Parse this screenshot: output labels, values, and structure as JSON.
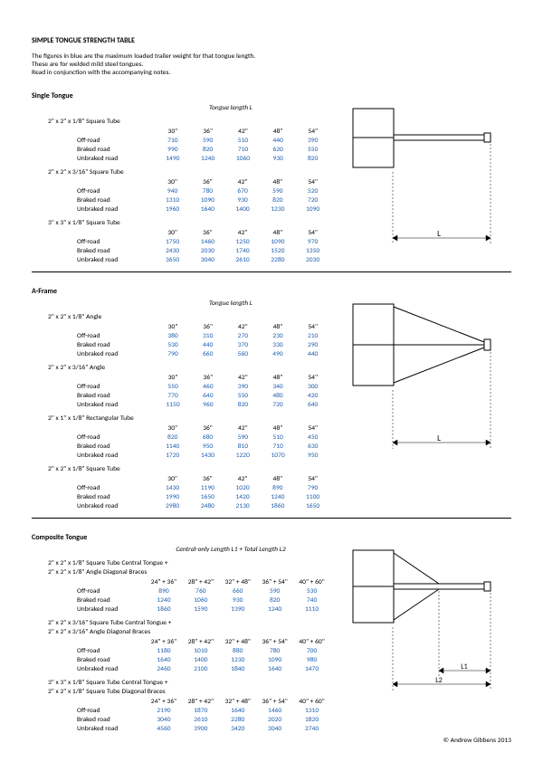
{
  "title": "SIMPLE TONGUE STRENGTH TABLE",
  "intro": [
    "The figures in blue are the maximum loaded trailer weight for that tongue length.",
    "These are for welded mild steel tongues.",
    "Read in conjunction with the accompanying notes."
  ],
  "sections": [
    {
      "name": "Single Tongue",
      "header": "Tongue length L",
      "cols": [
        "30\"",
        "36\"",
        "42\"",
        "48\"",
        "54\""
      ],
      "groups": [
        {
          "title": "2\" x 2\" x 1/8\" Square Tube",
          "rows": [
            {
              "label": "Off-road",
              "vals": [
                "710",
                "590",
                "510",
                "440",
                "390"
              ]
            },
            {
              "label": "Braked road",
              "vals": [
                "990",
                "820",
                "710",
                "620",
                "550"
              ]
            },
            {
              "label": "Unbraked road",
              "vals": [
                "1490",
                "1240",
                "1060",
                "930",
                "820"
              ]
            }
          ]
        },
        {
          "title": "2\" x 2\" x 3/16\" Square Tube",
          "rows": [
            {
              "label": "Off-road",
              "vals": [
                "940",
                "780",
                "670",
                "590",
                "520"
              ]
            },
            {
              "label": "Braked road",
              "vals": [
                "1310",
                "1090",
                "930",
                "820",
                "720"
              ]
            },
            {
              "label": "Unbraked road",
              "vals": [
                "1960",
                "1640",
                "1400",
                "1230",
                "1090"
              ]
            }
          ]
        },
        {
          "title": "3\" x 3\" x 1/8\" Square Tube",
          "rows": [
            {
              "label": "Off-road",
              "vals": [
                "1750",
                "1460",
                "1250",
                "1090",
                "970"
              ]
            },
            {
              "label": "Braked road",
              "vals": [
                "2430",
                "2030",
                "1740",
                "1520",
                "1350"
              ]
            },
            {
              "label": "Unbraked road",
              "vals": [
                "3650",
                "3040",
                "2610",
                "2280",
                "2030"
              ]
            }
          ]
        }
      ]
    },
    {
      "name": "A-Frame",
      "header": "Tongue length L",
      "cols": [
        "30\"",
        "36\"",
        "42\"",
        "48\"",
        "54\""
      ],
      "groups": [
        {
          "title": "2\" x 2\" x 1/8\" Angle",
          "rows": [
            {
              "label": "Off-road",
              "vals": [
                "380",
                "310",
                "270",
                "230",
                "210"
              ]
            },
            {
              "label": "Braked road",
              "vals": [
                "530",
                "440",
                "370",
                "330",
                "290"
              ]
            },
            {
              "label": "Unbraked road",
              "vals": [
                "790",
                "660",
                "560",
                "490",
                "440"
              ]
            }
          ]
        },
        {
          "title": "2\" x 2\" x 3/16\" Angle",
          "rows": [
            {
              "label": "Off-road",
              "vals": [
                "550",
                "460",
                "390",
                "340",
                "300"
              ]
            },
            {
              "label": "Braked road",
              "vals": [
                "770",
                "640",
                "550",
                "480",
                "420"
              ]
            },
            {
              "label": "Unbraked road",
              "vals": [
                "1150",
                "960",
                "820",
                "720",
                "640"
              ]
            }
          ]
        },
        {
          "title": "2\" x 1\" x 1/8\" Rectangular Tube",
          "rows": [
            {
              "label": "Off-road",
              "vals": [
                "820",
                "680",
                "590",
                "510",
                "450"
              ]
            },
            {
              "label": "Braked road",
              "vals": [
                "1140",
                "950",
                "810",
                "710",
                "630"
              ]
            },
            {
              "label": "Unbraked road",
              "vals": [
                "1720",
                "1430",
                "1220",
                "1070",
                "950"
              ]
            }
          ]
        },
        {
          "title": "2\" x 2\" x 1/8\" Square Tube",
          "rows": [
            {
              "label": "Off-road",
              "vals": [
                "1430",
                "1190",
                "1020",
                "890",
                "790"
              ]
            },
            {
              "label": "Braked road",
              "vals": [
                "1990",
                "1650",
                "1420",
                "1240",
                "1100"
              ]
            },
            {
              "label": "Unbraked road",
              "vals": [
                "2980",
                "2480",
                "2130",
                "1860",
                "1650"
              ]
            }
          ]
        }
      ]
    },
    {
      "name": "Composite Tongue",
      "header": "Central-only Length L1 + Total Length L2",
      "cols": [
        "24\" + 36\"",
        "28\" + 42\"",
        "32\" + 48\"",
        "36\" + 54\"",
        "40\" + 60\""
      ],
      "groups": [
        {
          "title": "2\" x 2\" x 1/8\" Square Tube Central Tongue +",
          "title2": "2\" x 2\" x 1/8\" Angle Diagonal Braces",
          "rows": [
            {
              "label": "Off-road",
              "vals": [
                "890",
                "760",
                "660",
                "590",
                "530"
              ]
            },
            {
              "label": "Braked road",
              "vals": [
                "1240",
                "1060",
                "930",
                "820",
                "740"
              ]
            },
            {
              "label": "Unbraked road",
              "vals": [
                "1860",
                "1590",
                "1390",
                "1240",
                "1110"
              ]
            }
          ]
        },
        {
          "title": "2\" x 2\" x 3/16\" Square Tube Central Tongue +",
          "title2": "2\" x 2\" x 3/16\" Angle Diagonal Braces",
          "rows": [
            {
              "label": "Off-road",
              "vals": [
                "1180",
                "1010",
                "880",
                "780",
                "700"
              ]
            },
            {
              "label": "Braked road",
              "vals": [
                "1640",
                "1400",
                "1230",
                "1090",
                "980"
              ]
            },
            {
              "label": "Unbraked road",
              "vals": [
                "2460",
                "2100",
                "1840",
                "1640",
                "1470"
              ]
            }
          ]
        },
        {
          "title": "3\" x 3\" x 1/8\" Square Tube Central Tongue +",
          "title2": "2\" x 2\" x 1/8\" Square Tube Diagonal Braces",
          "rows": [
            {
              "label": "Off-road",
              "vals": [
                "2190",
                "1870",
                "1640",
                "1460",
                "1310"
              ]
            },
            {
              "label": "Braked road",
              "vals": [
                "3040",
                "2610",
                "2280",
                "2020",
                "1820"
              ]
            },
            {
              "label": "Unbraked road",
              "vals": [
                "4560",
                "3900",
                "3420",
                "3040",
                "2740"
              ]
            }
          ]
        }
      ]
    }
  ],
  "copyright": "© Andrew Gibbens 2013"
}
